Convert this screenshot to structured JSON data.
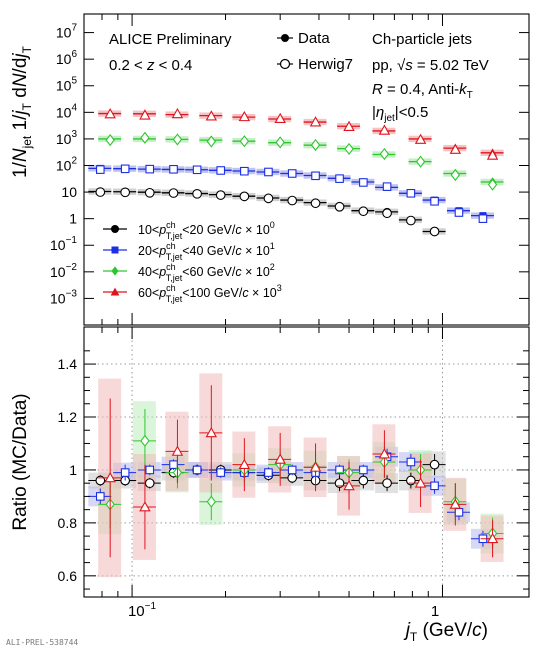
{
  "header": {
    "experiment": "ALICE Preliminary",
    "zrange": "0.2 < z < 0.4",
    "system_title": "Ch-particle jets",
    "system_energy": "pp, √s = 5.02 TeV",
    "jet_radius": "R = 0.4, Anti-kT",
    "eta_cut": "|ηjet|<0.5"
  },
  "footer": {
    "label": "ALI-PREL-538744"
  },
  "legend_top": [
    {
      "label": "Data",
      "marker": "filled-circle"
    },
    {
      "label": "Herwig7",
      "marker": "open-circle"
    }
  ],
  "colors": {
    "s10": "#000000",
    "s20": "#1a2fe6",
    "s40": "#2ec62e",
    "s60": "#e0141c",
    "band10": "#c8c8c8",
    "band20": "#b6b8ec",
    "band40": "#bdecbd",
    "band60": "#f3b9bc"
  },
  "chart_data": [
    {
      "type": "scatter",
      "panel": "top",
      "ylabel": "1/Njet 1/jT dN/djT",
      "yscale": "log",
      "xscale": "log",
      "ylim": [
        0.0001,
        50000000
      ],
      "xlim": [
        0.07,
        1.9
      ],
      "y_ticks": [
        "10^7",
        "10^6",
        "10^5",
        "10^4",
        "10^3",
        "10^2",
        "10",
        "1",
        "10^-1",
        "10^-2",
        "10^-3"
      ],
      "series": [
        {
          "key": "s10",
          "name": "10<pT,jet^ch<20 GeV/c × 10^0",
          "legend": {
            "pre": "10<",
            "mid": "<20 GeV/",
            "c": "c",
            "scale": " × 10",
            "exp": "0"
          },
          "points": [
            [
              0.079,
              10.5
            ],
            [
              0.095,
              10.3
            ],
            [
              0.114,
              9.9
            ],
            [
              0.136,
              9.4
            ],
            [
              0.162,
              8.8
            ],
            [
              0.193,
              8.0
            ],
            [
              0.23,
              7.0
            ],
            [
              0.275,
              6.0
            ],
            [
              0.328,
              5.0
            ],
            [
              0.39,
              4.0
            ],
            [
              0.466,
              3.0
            ],
            [
              0.556,
              2.0
            ],
            [
              0.663,
              1.8
            ],
            [
              0.791,
              0.9
            ],
            [
              0.943,
              0.33
            ]
          ],
          "mc": [
            [
              0.079,
              10.0
            ],
            [
              0.095,
              9.8
            ],
            [
              0.114,
              9.4
            ],
            [
              0.136,
              9.2
            ],
            [
              0.162,
              8.6
            ],
            [
              0.193,
              7.7
            ],
            [
              0.23,
              6.9
            ],
            [
              0.275,
              5.8
            ],
            [
              0.328,
              4.8
            ],
            [
              0.39,
              3.8
            ],
            [
              0.466,
              2.8
            ],
            [
              0.556,
              1.9
            ],
            [
              0.663,
              1.6
            ],
            [
              0.791,
              0.85
            ],
            [
              0.943,
              0.33
            ]
          ]
        },
        {
          "key": "s20",
          "name": "20<pT,jet^ch<40 GeV/c × 10^1",
          "legend": {
            "pre": "20<",
            "mid": "<40 GeV/",
            "c": "c",
            "scale": " × 10",
            "exp": "1"
          },
          "points": [
            [
              0.079,
              78
            ],
            [
              0.095,
              76
            ],
            [
              0.114,
              73
            ],
            [
              0.136,
              71
            ],
            [
              0.162,
              69
            ],
            [
              0.193,
              66
            ],
            [
              0.23,
              62
            ],
            [
              0.275,
              57
            ],
            [
              0.328,
              50
            ],
            [
              0.39,
              42
            ],
            [
              0.466,
              33
            ],
            [
              0.556,
              24
            ],
            [
              0.663,
              15
            ],
            [
              0.791,
              9
            ],
            [
              0.943,
              5
            ],
            [
              1.13,
              2.0
            ],
            [
              1.35,
              1.3
            ]
          ],
          "mc": [
            [
              0.079,
              70
            ],
            [
              0.095,
              75
            ],
            [
              0.114,
              73
            ],
            [
              0.136,
              72
            ],
            [
              0.162,
              69
            ],
            [
              0.193,
              65
            ],
            [
              0.23,
              61
            ],
            [
              0.275,
              57
            ],
            [
              0.328,
              50
            ],
            [
              0.39,
              41
            ],
            [
              0.466,
              32
            ],
            [
              0.556,
              23
            ],
            [
              0.663,
              16
            ],
            [
              0.791,
              9
            ],
            [
              0.943,
              4.5
            ],
            [
              1.13,
              1.7
            ],
            [
              1.35,
              1.0
            ]
          ]
        },
        {
          "key": "s40",
          "name": "40<pT,jet^ch<60 GeV/c × 10^2",
          "legend": {
            "pre": "40<",
            "mid": "<60 GeV/",
            "c": "c",
            "scale": " × 10",
            "exp": "2"
          },
          "points": [
            [
              0.085,
              1000
            ],
            [
              0.11,
              1000
            ],
            [
              0.14,
              960
            ],
            [
              0.18,
              900
            ],
            [
              0.23,
              820
            ],
            [
              0.3,
              720
            ],
            [
              0.39,
              580
            ],
            [
              0.5,
              430
            ],
            [
              0.65,
              260
            ],
            [
              0.85,
              140
            ],
            [
              1.1,
              50
            ],
            [
              1.45,
              24
            ]
          ],
          "mc": [
            [
              0.085,
              900
            ],
            [
              0.11,
              1100
            ],
            [
              0.14,
              950
            ],
            [
              0.18,
              800
            ],
            [
              0.23,
              820
            ],
            [
              0.3,
              740
            ],
            [
              0.39,
              590
            ],
            [
              0.5,
              420
            ],
            [
              0.65,
              270
            ],
            [
              0.85,
              140
            ],
            [
              1.1,
              44
            ],
            [
              1.45,
              19
            ]
          ]
        },
        {
          "key": "s60",
          "name": "60<pT,jet^ch<100 GeV/c × 10^3",
          "legend": {
            "pre": "60<",
            "mid": "<100 GeV/",
            "c": "c",
            "scale": " × 10",
            "exp": "3"
          },
          "points": [
            [
              0.085,
              9000
            ],
            [
              0.11,
              8800
            ],
            [
              0.14,
              8200
            ],
            [
              0.18,
              7500
            ],
            [
              0.23,
              6600
            ],
            [
              0.3,
              5600
            ],
            [
              0.39,
              4300
            ],
            [
              0.5,
              3000
            ],
            [
              0.65,
              2000
            ],
            [
              0.85,
              1000
            ],
            [
              1.1,
              450
            ],
            [
              1.45,
              300
            ]
          ],
          "mc": [
            [
              0.085,
              8700
            ],
            [
              0.11,
              7800
            ],
            [
              0.14,
              8800
            ],
            [
              0.18,
              7200
            ],
            [
              0.23,
              6800
            ],
            [
              0.3,
              5800
            ],
            [
              0.39,
              4300
            ],
            [
              0.5,
              2900
            ],
            [
              0.65,
              2100
            ],
            [
              0.85,
              950
            ],
            [
              1.1,
              400
            ],
            [
              1.45,
              240
            ]
          ]
        }
      ]
    },
    {
      "type": "scatter",
      "panel": "bottom",
      "ylabel": "Ratio (MC/Data)",
      "xlabel": "jT (GeV/c)",
      "xscale": "log",
      "ylim": [
        0.52,
        1.54
      ],
      "xlim": [
        0.07,
        1.9
      ],
      "y_ticks": [
        "0.6",
        "0.8",
        "1",
        "1.2",
        "1.4"
      ],
      "x_ticks": [
        "10^-1",
        "1"
      ],
      "grid": true,
      "series": [
        {
          "key": "s10",
          "name": "10-20 GeV/c",
          "points": [
            [
              0.079,
              0.96,
              0.02
            ],
            [
              0.095,
              0.96,
              0.02
            ],
            [
              0.114,
              0.95,
              0.02
            ],
            [
              0.136,
              0.99,
              0.02
            ],
            [
              0.162,
              1.0,
              0.02
            ],
            [
              0.193,
              1.0,
              0.02
            ],
            [
              0.23,
              0.99,
              0.02
            ],
            [
              0.275,
              0.98,
              0.02
            ],
            [
              0.328,
              0.97,
              0.02
            ],
            [
              0.39,
              0.96,
              0.03
            ],
            [
              0.466,
              0.95,
              0.03
            ],
            [
              0.556,
              0.96,
              0.03
            ],
            [
              0.663,
              0.95,
              0.03
            ],
            [
              0.791,
              0.96,
              0.03
            ],
            [
              0.943,
              1.02,
              0.04
            ]
          ]
        },
        {
          "key": "s20",
          "name": "20-40 GeV/c",
          "points": [
            [
              0.079,
              0.9,
              0.03
            ],
            [
              0.095,
              0.99,
              0.03
            ],
            [
              0.114,
              1.0,
              0.02
            ],
            [
              0.136,
              1.02,
              0.02
            ],
            [
              0.162,
              1.0,
              0.02
            ],
            [
              0.193,
              0.99,
              0.02
            ],
            [
              0.23,
              0.99,
              0.02
            ],
            [
              0.275,
              0.99,
              0.02
            ],
            [
              0.328,
              1.0,
              0.02
            ],
            [
              0.39,
              0.99,
              0.02
            ],
            [
              0.466,
              1.0,
              0.02
            ],
            [
              0.556,
              1.0,
              0.02
            ],
            [
              0.663,
              1.05,
              0.03
            ],
            [
              0.791,
              1.03,
              0.03
            ],
            [
              0.943,
              0.94,
              0.03
            ],
            [
              1.13,
              0.84,
              0.03
            ],
            [
              1.35,
              0.74,
              0.03
            ]
          ]
        },
        {
          "key": "s40",
          "name": "40-60 GeV/c",
          "points": [
            [
              0.085,
              0.87,
              0.09
            ],
            [
              0.11,
              1.11,
              0.12
            ],
            [
              0.14,
              0.99,
              0.06
            ],
            [
              0.18,
              0.88,
              0.07
            ],
            [
              0.23,
              1.0,
              0.05
            ],
            [
              0.3,
              1.02,
              0.05
            ],
            [
              0.39,
              1.01,
              0.05
            ],
            [
              0.5,
              0.99,
              0.05
            ],
            [
              0.65,
              1.03,
              0.06
            ],
            [
              0.85,
              1.0,
              0.06
            ],
            [
              1.1,
              0.88,
              0.07
            ],
            [
              1.45,
              0.76,
              0.06
            ]
          ]
        },
        {
          "key": "s60",
          "name": "60-100 GeV/c",
          "points": [
            [
              0.085,
              0.97,
              0.3
            ],
            [
              0.11,
              0.86,
              0.16
            ],
            [
              0.14,
              1.07,
              0.12
            ],
            [
              0.18,
              1.14,
              0.18
            ],
            [
              0.23,
              1.02,
              0.1
            ],
            [
              0.3,
              1.04,
              0.1
            ],
            [
              0.39,
              1.01,
              0.09
            ],
            [
              0.5,
              0.94,
              0.09
            ],
            [
              0.65,
              1.06,
              0.09
            ],
            [
              0.85,
              0.95,
              0.09
            ],
            [
              1.1,
              0.87,
              0.08
            ],
            [
              1.45,
              0.74,
              0.07
            ]
          ]
        }
      ]
    }
  ]
}
